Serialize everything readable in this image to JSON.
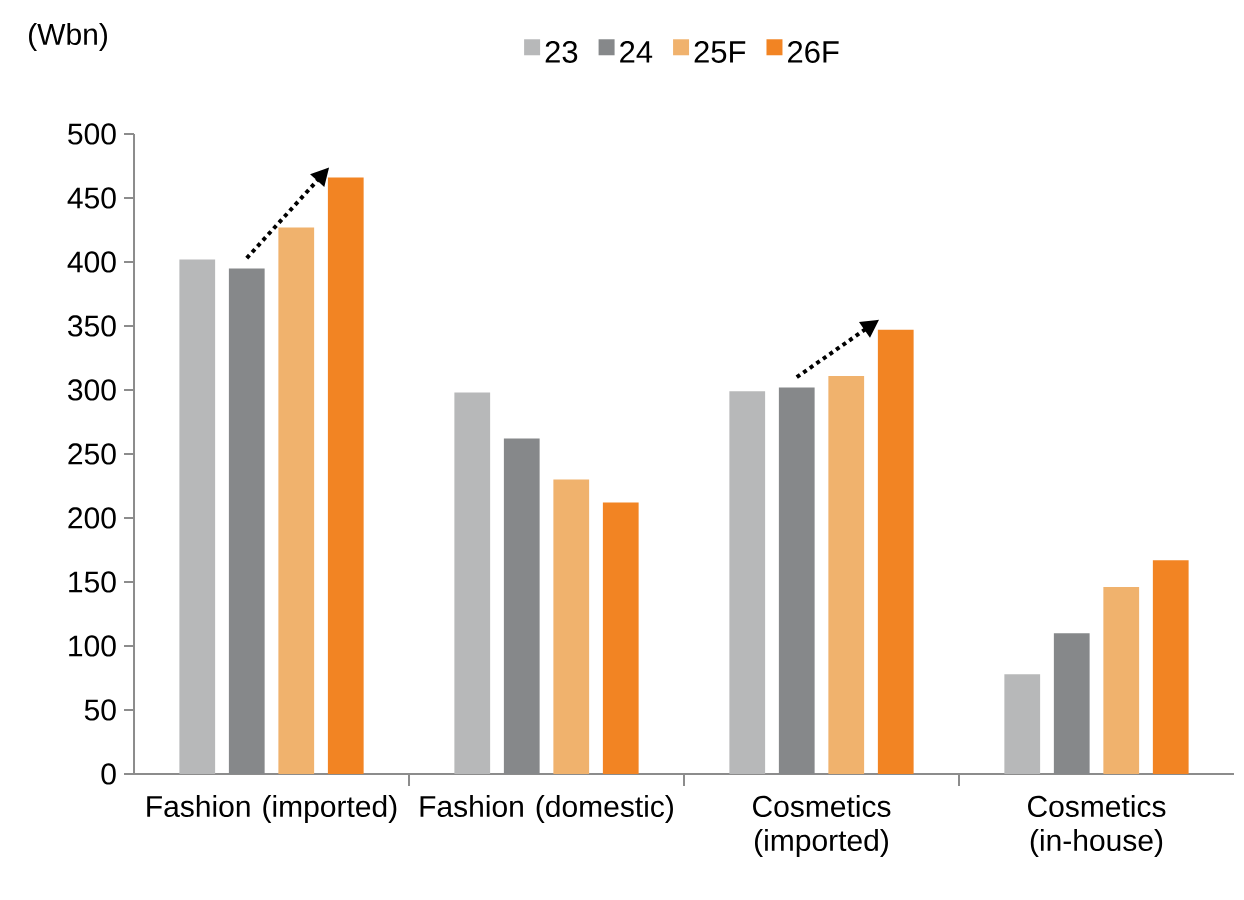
{
  "chart_data": {
    "type": "bar",
    "ylabel": "(Wbn)",
    "categories": [
      "Fashion (imported)",
      "Fashion (domestic)",
      "Cosmetics (imported)",
      "Cosmetics (in-house)"
    ],
    "series": [
      {
        "name": "23",
        "color": "#b7b8b9",
        "values": [
          402,
          298,
          299,
          78
        ]
      },
      {
        "name": "24",
        "color": "#86888a",
        "values": [
          395,
          262,
          302,
          110
        ]
      },
      {
        "name": "25F",
        "color": "#f0b26d",
        "values": [
          427,
          230,
          311,
          146
        ]
      },
      {
        "name": "26F",
        "color": "#f28423",
        "values": [
          466,
          212,
          347,
          167
        ]
      }
    ],
    "ylim": [
      0,
      500
    ],
    "yticks": [
      0,
      50,
      100,
      150,
      200,
      250,
      300,
      350,
      400,
      450,
      500
    ],
    "legend": "top"
  }
}
